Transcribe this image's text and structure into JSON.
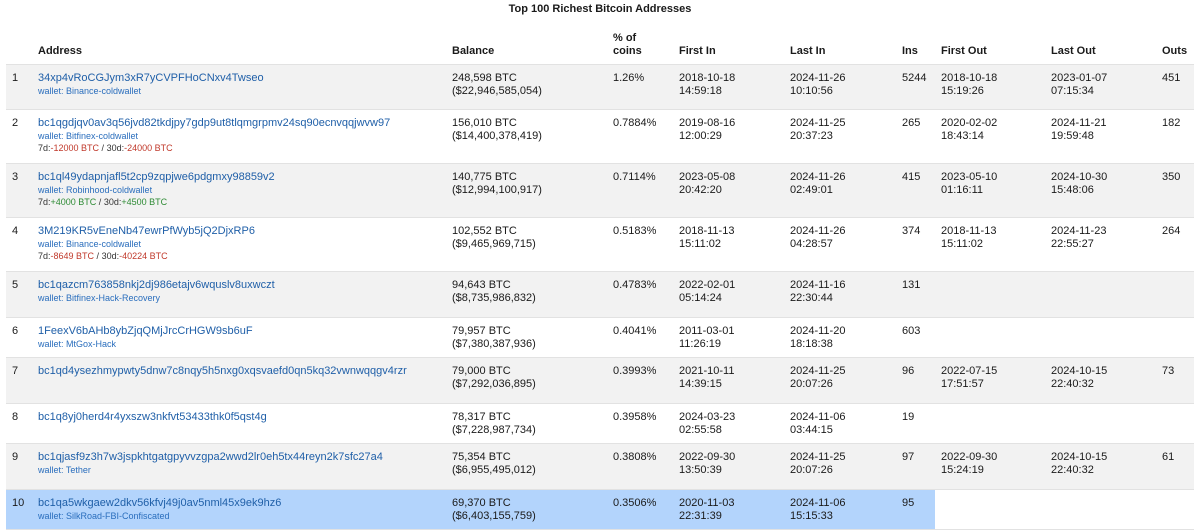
{
  "page": {
    "title": "Top 100 Richest Bitcoin Addresses"
  },
  "headers": {
    "rank": "",
    "address": "Address",
    "balance": "Balance",
    "pct_line1": "% of",
    "pct_line2": "coins",
    "first_in": "First In",
    "last_in": "Last In",
    "ins": "Ins",
    "first_out": "First Out",
    "last_out": "Last Out",
    "outs": "Outs"
  },
  "rows": [
    {
      "rank": "1",
      "address": "34xp4vRoCGJym3xR7yCVPFHoCNxv4Twseo",
      "wallet": "wallet: Binance-coldwallet",
      "btc": "248,598 BTC",
      "usd": "($22,946,585,054)",
      "pct": "1.26%",
      "first_in_date": "2018-10-18",
      "first_in_time": "14:59:18",
      "last_in_date": "2024-11-26",
      "last_in_time": "10:10:56",
      "ins": "5244",
      "first_out_date": "2018-10-18",
      "first_out_time": "15:19:26",
      "last_out_date": "2023-01-07",
      "last_out_time": "07:15:34",
      "outs": "451"
    },
    {
      "rank": "2",
      "address": "bc1qgdjqv0av3q56jvd82tkdjpy7gdp9ut8tlqmgrpmv24sq90ecnvqqjwvw97",
      "wallet": "wallet: Bitfinex-coldwallet",
      "chg_prefix_7d": "7d:",
      "chg_7d": "-12000 BTC",
      "chg_sep": " / ",
      "chg_prefix_30d": "30d:",
      "chg_30d": "-24000 BTC",
      "btc": "156,010 BTC",
      "usd": "($14,400,378,419)",
      "pct": "0.7884%",
      "first_in_date": "2019-08-16",
      "first_in_time": "12:00:29",
      "last_in_date": "2024-11-25",
      "last_in_time": "20:37:23",
      "ins": "265",
      "first_out_date": "2020-02-02",
      "first_out_time": "18:43:14",
      "last_out_date": "2024-11-21",
      "last_out_time": "19:59:48",
      "outs": "182"
    },
    {
      "rank": "3",
      "address": "bc1ql49ydapnjafl5t2cp9zqpjwe6pdgmxy98859v2",
      "wallet": "wallet: Robinhood-coldwallet",
      "chg_prefix_7d": "7d:",
      "chg_7d": "+4000 BTC",
      "chg_sep": " / ",
      "chg_prefix_30d": "30d:",
      "chg_30d": "+4500 BTC",
      "btc": "140,775 BTC",
      "usd": "($12,994,100,917)",
      "pct": "0.7114%",
      "first_in_date": "2023-05-08",
      "first_in_time": "20:42:20",
      "last_in_date": "2024-11-26",
      "last_in_time": "02:49:01",
      "ins": "415",
      "first_out_date": "2023-05-10",
      "first_out_time": "01:16:11",
      "last_out_date": "2024-10-30",
      "last_out_time": "15:48:06",
      "outs": "350"
    },
    {
      "rank": "4",
      "address": "3M219KR5vEneNb47ewrPfWyb5jQ2DjxRP6",
      "wallet": "wallet: Binance-coldwallet",
      "chg_prefix_7d": "7d:",
      "chg_7d": "-8649 BTC",
      "chg_sep": " / ",
      "chg_prefix_30d": "30d:",
      "chg_30d": "-40224 BTC",
      "btc": "102,552 BTC",
      "usd": "($9,465,969,715)",
      "pct": "0.5183%",
      "first_in_date": "2018-11-13",
      "first_in_time": "15:11:02",
      "last_in_date": "2024-11-26",
      "last_in_time": "04:28:57",
      "ins": "374",
      "first_out_date": "2018-11-13",
      "first_out_time": "15:11:02",
      "last_out_date": "2024-11-23",
      "last_out_time": "22:55:27",
      "outs": "264"
    },
    {
      "rank": "5",
      "address": "bc1qazcm763858nkj2dj986etajv6wquslv8uxwczt",
      "wallet": "wallet: Bitfinex-Hack-Recovery",
      "btc": "94,643 BTC",
      "usd": "($8,735,986,832)",
      "pct": "0.4783%",
      "first_in_date": "2022-02-01",
      "first_in_time": "05:14:24",
      "last_in_date": "2024-11-16",
      "last_in_time": "22:30:44",
      "ins": "131",
      "first_out_date": "",
      "first_out_time": "",
      "last_out_date": "",
      "last_out_time": "",
      "outs": ""
    },
    {
      "rank": "6",
      "address": "1FeexV6bAHb8ybZjqQMjJrcCrHGW9sb6uF",
      "wallet": "wallet: MtGox-Hack",
      "btc": "79,957 BTC",
      "usd": "($7,380,387,936)",
      "pct": "0.4041%",
      "first_in_date": "2011-03-01",
      "first_in_time": "11:26:19",
      "last_in_date": "2024-11-20",
      "last_in_time": "18:18:38",
      "ins": "603",
      "first_out_date": "",
      "first_out_time": "",
      "last_out_date": "",
      "last_out_time": "",
      "outs": ""
    },
    {
      "rank": "7",
      "address": "bc1qd4ysezhmypwty5dnw7c8nqy5h5nxg0xqsvaefd0qn5kq32vwnwqqgv4rzr",
      "wallet": "",
      "btc": "79,000 BTC",
      "usd": "($7,292,036,895)",
      "pct": "0.3993%",
      "first_in_date": "2021-10-11",
      "first_in_time": "14:39:15",
      "last_in_date": "2024-11-25",
      "last_in_time": "20:07:26",
      "ins": "96",
      "first_out_date": "2022-07-15",
      "first_out_time": "17:51:57",
      "last_out_date": "2024-10-15",
      "last_out_time": "22:40:32",
      "outs": "73"
    },
    {
      "rank": "8",
      "address": "bc1q8yj0herd4r4yxszw3nkfvt53433thk0f5qst4g",
      "wallet": "",
      "btc": "78,317 BTC",
      "usd": "($7,228,987,734)",
      "pct": "0.3958%",
      "first_in_date": "2024-03-23",
      "first_in_time": "02:55:58",
      "last_in_date": "2024-11-06",
      "last_in_time": "03:44:15",
      "ins": "19",
      "first_out_date": "",
      "first_out_time": "",
      "last_out_date": "",
      "last_out_time": "",
      "outs": ""
    },
    {
      "rank": "9",
      "address": "bc1qjasf9z3h7w3jspkhtgatgpyvvzgpa2wwd2lr0eh5tx44reyn2k7sfc27a4",
      "wallet": "wallet: Tether",
      "btc": "75,354 BTC",
      "usd": "($6,955,495,012)",
      "pct": "0.3808%",
      "first_in_date": "2022-09-30",
      "first_in_time": "13:50:39",
      "last_in_date": "2024-11-25",
      "last_in_time": "20:07:26",
      "ins": "97",
      "first_out_date": "2022-09-30",
      "first_out_time": "15:24:19",
      "last_out_date": "2024-10-15",
      "last_out_time": "22:40:32",
      "outs": "61"
    },
    {
      "rank": "10",
      "address": "bc1qa5wkgaew2dkv56kfvj49j0av5nml45x9ek9hz6",
      "wallet": "wallet: SilkRoad-FBI-Confiscated",
      "btc": "69,370 BTC",
      "usd": "($6,403,155,759)",
      "pct": "0.3506%",
      "first_in_date": "2020-11-03",
      "first_in_time": "22:31:39",
      "last_in_date": "2024-11-06",
      "last_in_time": "15:15:33",
      "ins": "95",
      "first_out_date": "",
      "first_out_time": "",
      "last_out_date": "",
      "last_out_time": "",
      "outs": ""
    }
  ],
  "colors": {
    "link": "#1f5fa8",
    "negative": "#c0392b",
    "positive": "#2e8b35",
    "highlight": "#b3d4fc",
    "stripe": "#f2f2f2"
  }
}
